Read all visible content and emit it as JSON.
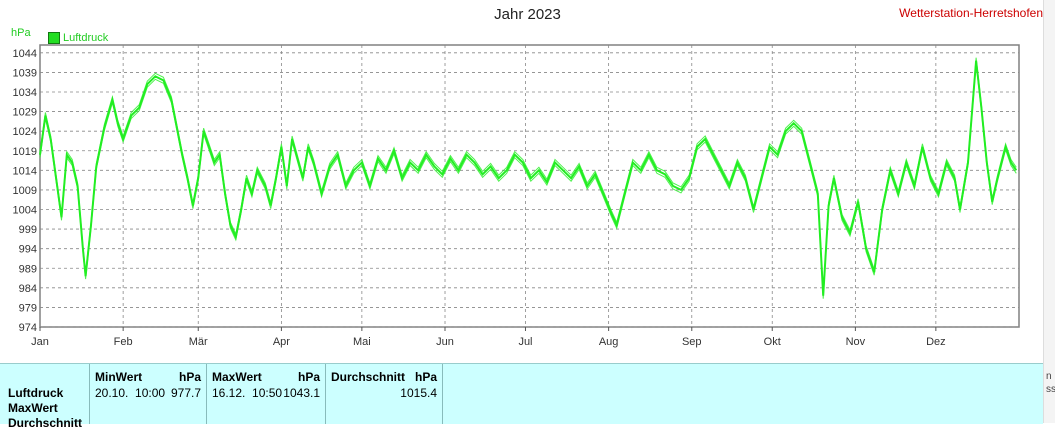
{
  "header": {
    "title": "Jahr 2023",
    "station": "Wetterstation-Herretshofen",
    "unit": "hPa",
    "legend_label": "Luftdruck"
  },
  "colors": {
    "series": "#22ee22",
    "grid": "#888888",
    "station": "#cc0000",
    "stats_bg": "#ccffff"
  },
  "chart_data": {
    "type": "line",
    "title": "Jahr 2023",
    "ylabel": "hPa",
    "ylim": [
      974,
      1046
    ],
    "yticks": [
      974,
      979,
      984,
      989,
      994,
      999,
      1004,
      1009,
      1014,
      1019,
      1024,
      1029,
      1034,
      1039,
      1044
    ],
    "xlim": [
      "2023-01-01",
      "2023-12-31"
    ],
    "months": [
      "Jan",
      "Feb",
      "Mär",
      "Apr",
      "Mai",
      "Jun",
      "Jul",
      "Aug",
      "Sep",
      "Okt",
      "Nov",
      "Dez"
    ],
    "grid": true,
    "legend_position": "top-left",
    "series": [
      {
        "name": "Luftdruck",
        "points": [
          [
            "2023-01-01",
            1018
          ],
          [
            "2023-01-03",
            1028
          ],
          [
            "2023-01-05",
            1022
          ],
          [
            "2023-01-07",
            1012
          ],
          [
            "2023-01-09",
            1002
          ],
          [
            "2023-01-11",
            1018
          ],
          [
            "2023-01-13",
            1016
          ],
          [
            "2023-01-15",
            1010
          ],
          [
            "2023-01-17",
            994
          ],
          [
            "2023-01-18",
            987
          ],
          [
            "2023-01-20",
            1000
          ],
          [
            "2023-01-22",
            1015
          ],
          [
            "2023-01-25",
            1025
          ],
          [
            "2023-01-28",
            1032
          ],
          [
            "2023-01-30",
            1026
          ],
          [
            "2023-02-01",
            1022
          ],
          [
            "2023-02-04",
            1028
          ],
          [
            "2023-02-07",
            1030
          ],
          [
            "2023-02-10",
            1036
          ],
          [
            "2023-02-13",
            1038
          ],
          [
            "2023-02-16",
            1037
          ],
          [
            "2023-02-19",
            1032
          ],
          [
            "2023-02-21",
            1025
          ],
          [
            "2023-02-23",
            1018
          ],
          [
            "2023-02-25",
            1012
          ],
          [
            "2023-02-27",
            1005
          ],
          [
            "2023-03-01",
            1012
          ],
          [
            "2023-03-03",
            1024
          ],
          [
            "2023-03-05",
            1020
          ],
          [
            "2023-03-07",
            1016
          ],
          [
            "2023-03-09",
            1018
          ],
          [
            "2023-03-11",
            1008
          ],
          [
            "2023-03-13",
            1000
          ],
          [
            "2023-03-15",
            997
          ],
          [
            "2023-03-17",
            1004
          ],
          [
            "2023-03-19",
            1012
          ],
          [
            "2023-03-21",
            1008
          ],
          [
            "2023-03-23",
            1014
          ],
          [
            "2023-03-26",
            1010
          ],
          [
            "2023-03-28",
            1005
          ],
          [
            "2023-03-30",
            1012
          ],
          [
            "2023-04-01",
            1020
          ],
          [
            "2023-04-03",
            1010
          ],
          [
            "2023-04-05",
            1022
          ],
          [
            "2023-04-07",
            1017
          ],
          [
            "2023-04-09",
            1012
          ],
          [
            "2023-04-11",
            1020
          ],
          [
            "2023-04-13",
            1016
          ],
          [
            "2023-04-16",
            1008
          ],
          [
            "2023-04-19",
            1015
          ],
          [
            "2023-04-22",
            1018
          ],
          [
            "2023-04-25",
            1010
          ],
          [
            "2023-04-28",
            1014
          ],
          [
            "2023-05-01",
            1016
          ],
          [
            "2023-05-04",
            1010
          ],
          [
            "2023-05-07",
            1017
          ],
          [
            "2023-05-10",
            1014
          ],
          [
            "2023-05-13",
            1019
          ],
          [
            "2023-05-16",
            1012
          ],
          [
            "2023-05-19",
            1016
          ],
          [
            "2023-05-22",
            1014
          ],
          [
            "2023-05-25",
            1018
          ],
          [
            "2023-05-28",
            1015
          ],
          [
            "2023-05-31",
            1013
          ],
          [
            "2023-06-03",
            1017
          ],
          [
            "2023-06-06",
            1014
          ],
          [
            "2023-06-09",
            1018
          ],
          [
            "2023-06-12",
            1016
          ],
          [
            "2023-06-15",
            1013
          ],
          [
            "2023-06-18",
            1015
          ],
          [
            "2023-06-21",
            1012
          ],
          [
            "2023-06-24",
            1014
          ],
          [
            "2023-06-27",
            1018
          ],
          [
            "2023-06-30",
            1016
          ],
          [
            "2023-07-03",
            1012
          ],
          [
            "2023-07-06",
            1014
          ],
          [
            "2023-07-09",
            1011
          ],
          [
            "2023-07-12",
            1016
          ],
          [
            "2023-07-15",
            1014
          ],
          [
            "2023-07-18",
            1012
          ],
          [
            "2023-07-21",
            1015
          ],
          [
            "2023-07-24",
            1010
          ],
          [
            "2023-07-27",
            1013
          ],
          [
            "2023-07-30",
            1008
          ],
          [
            "2023-08-02",
            1003
          ],
          [
            "2023-08-04",
            1000
          ],
          [
            "2023-08-07",
            1008
          ],
          [
            "2023-08-10",
            1016
          ],
          [
            "2023-08-13",
            1014
          ],
          [
            "2023-08-16",
            1018
          ],
          [
            "2023-08-19",
            1014
          ],
          [
            "2023-08-22",
            1013
          ],
          [
            "2023-08-25",
            1010
          ],
          [
            "2023-08-28",
            1009
          ],
          [
            "2023-08-31",
            1012
          ],
          [
            "2023-09-03",
            1020
          ],
          [
            "2023-09-06",
            1022
          ],
          [
            "2023-09-09",
            1018
          ],
          [
            "2023-09-12",
            1014
          ],
          [
            "2023-09-15",
            1010
          ],
          [
            "2023-09-18",
            1016
          ],
          [
            "2023-09-21",
            1012
          ],
          [
            "2023-09-24",
            1004
          ],
          [
            "2023-09-27",
            1012
          ],
          [
            "2023-09-30",
            1020
          ],
          [
            "2023-10-03",
            1018
          ],
          [
            "2023-10-06",
            1024
          ],
          [
            "2023-10-09",
            1026
          ],
          [
            "2023-10-12",
            1024
          ],
          [
            "2023-10-15",
            1016
          ],
          [
            "2023-10-18",
            1008
          ],
          [
            "2023-10-20",
            982
          ],
          [
            "2023-10-22",
            1005
          ],
          [
            "2023-10-24",
            1012
          ],
          [
            "2023-10-27",
            1002
          ],
          [
            "2023-10-30",
            998
          ],
          [
            "2023-11-02",
            1006
          ],
          [
            "2023-11-05",
            994
          ],
          [
            "2023-11-08",
            988
          ],
          [
            "2023-11-11",
            1004
          ],
          [
            "2023-11-14",
            1014
          ],
          [
            "2023-11-17",
            1008
          ],
          [
            "2023-11-20",
            1016
          ],
          [
            "2023-11-23",
            1010
          ],
          [
            "2023-11-26",
            1020
          ],
          [
            "2023-11-29",
            1012
          ],
          [
            "2023-12-02",
            1008
          ],
          [
            "2023-12-05",
            1016
          ],
          [
            "2023-12-08",
            1012
          ],
          [
            "2023-12-10",
            1004
          ],
          [
            "2023-12-13",
            1016
          ],
          [
            "2023-12-16",
            1042
          ],
          [
            "2023-12-18",
            1030
          ],
          [
            "2023-12-20",
            1016
          ],
          [
            "2023-12-22",
            1006
          ],
          [
            "2023-12-24",
            1012
          ],
          [
            "2023-12-27",
            1020
          ],
          [
            "2023-12-29",
            1016
          ],
          [
            "2023-12-31",
            1014
          ]
        ]
      }
    ]
  },
  "stats": {
    "row_labels": [
      "Luftdruck",
      "MaxWert",
      "Durchschnitt"
    ],
    "min": {
      "label": "MinWert",
      "unit": "hPa",
      "date": "20.10.",
      "time": "10:00",
      "value": "977.7"
    },
    "max": {
      "label": "MaxWert",
      "unit": "hPa",
      "date": "16.12.",
      "time": "10:50",
      "value": "1043.1"
    },
    "avg": {
      "label": "Durchschnitt",
      "unit": "hPa",
      "value": "1015.4"
    }
  },
  "edge_text": [
    "n",
    "ss"
  ]
}
